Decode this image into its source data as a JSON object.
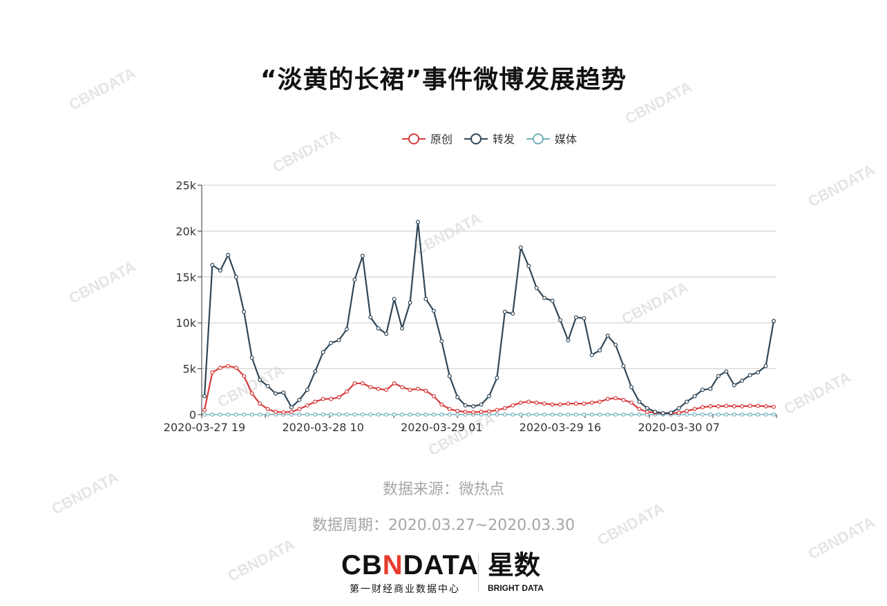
{
  "title": "“淡黄的长裙”事件微博发展趋势",
  "source_note": "数据来源：微热点",
  "period_note": "数据周期：2020.03.27~2020.03.30",
  "logo": {
    "main_prefix": "CB",
    "main_accent": "N",
    "main_suffix": "DATA",
    "main_sub": "第一财经商业数据中心",
    "partner": "星数",
    "partner_sub": "BRIGHT DATA"
  },
  "watermark_text": "CBNDATA",
  "colors": {
    "original": "#d7393a",
    "repost": "#2f4657",
    "media": "#6fb1bc",
    "grid": "#cccccc",
    "axis": "#333333",
    "accent": "#e83b2b"
  },
  "chart_data": {
    "type": "line",
    "title": "",
    "xlabel": "",
    "ylabel": "",
    "ylim": [
      0,
      25000
    ],
    "y_ticks": [
      0,
      5000,
      10000,
      15000,
      20000,
      25000
    ],
    "y_tick_labels": [
      "0",
      "5k",
      "10k",
      "15k",
      "20k",
      "25k"
    ],
    "x_labels": [
      {
        "index": 0,
        "label": "2020-03-27 19"
      },
      {
        "index": 15,
        "label": "2020-03-28 10"
      },
      {
        "index": 30,
        "label": "2020-03-29 01"
      },
      {
        "index": 45,
        "label": "2020-03-29 16"
      },
      {
        "index": 60,
        "label": "2020-03-30 07"
      }
    ],
    "legend_position": "top-center",
    "grid": true,
    "series": [
      {
        "name": "原创",
        "values": [
          500,
          4600,
          5100,
          5300,
          5100,
          4200,
          2300,
          1200,
          600,
          300,
          250,
          300,
          600,
          1000,
          1400,
          1700,
          1700,
          1900,
          2500,
          3400,
          3400,
          3000,
          2800,
          2700,
          3400,
          3000,
          2700,
          2800,
          2600,
          2000,
          1100,
          600,
          400,
          300,
          250,
          300,
          350,
          500,
          700,
          1000,
          1300,
          1400,
          1300,
          1200,
          1100,
          1100,
          1200,
          1200,
          1200,
          1300,
          1400,
          1700,
          1800,
          1600,
          1300,
          600,
          300,
          200,
          150,
          150,
          200,
          400,
          600,
          800,
          900,
          900,
          950,
          900,
          900,
          950,
          950,
          900,
          850
        ]
      },
      {
        "name": "转发",
        "values": [
          2000,
          16300,
          15700,
          17400,
          15000,
          11200,
          6200,
          3800,
          3100,
          2300,
          2400,
          800,
          1600,
          2700,
          4700,
          6800,
          7800,
          8100,
          9300,
          14700,
          17300,
          10600,
          9400,
          8800,
          12600,
          9400,
          12200,
          21000,
          12600,
          11300,
          8000,
          4200,
          1900,
          1000,
          900,
          1100,
          2000,
          4000,
          11200,
          11000,
          18200,
          16200,
          13800,
          12700,
          12400,
          10300,
          8100,
          10600,
          10500,
          6500,
          7000,
          8600,
          7600,
          5300,
          3000,
          1400,
          700,
          300,
          150,
          200,
          700,
          1400,
          2000,
          2700,
          2800,
          4200,
          4700,
          3200,
          3700,
          4300,
          4600,
          5300,
          10200
        ]
      },
      {
        "name": "媒体",
        "values": [
          10,
          10,
          10,
          10,
          10,
          10,
          10,
          10,
          10,
          10,
          10,
          10,
          10,
          10,
          10,
          10,
          10,
          10,
          10,
          10,
          10,
          10,
          10,
          10,
          10,
          10,
          10,
          10,
          10,
          10,
          10,
          10,
          10,
          10,
          10,
          10,
          10,
          10,
          10,
          10,
          10,
          10,
          10,
          10,
          10,
          10,
          10,
          10,
          10,
          10,
          10,
          10,
          10,
          10,
          10,
          10,
          10,
          10,
          10,
          10,
          10,
          10,
          10,
          10,
          10,
          10,
          10,
          10,
          10,
          10,
          10,
          10,
          10
        ]
      }
    ]
  }
}
